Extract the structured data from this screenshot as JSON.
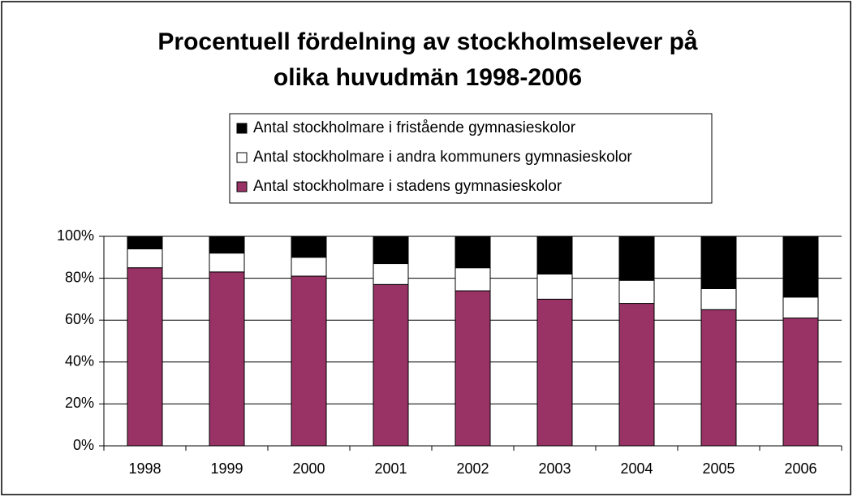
{
  "chart_data": {
    "type": "stacked_bar",
    "title": [
      "Procentuell fördelning av stockholmselever på",
      "olika huvudmän 1998-2006"
    ],
    "categories": [
      "1998",
      "1999",
      "2000",
      "2001",
      "2002",
      "2003",
      "2004",
      "2005",
      "2006"
    ],
    "series": [
      {
        "name": "Antal stockholmare i stadens gymnasieskolor",
        "color": "#993366",
        "values": [
          85,
          83,
          81,
          77,
          74,
          70,
          68,
          65,
          61
        ]
      },
      {
        "name": "Antal stockholmare i andra kommuners gymnasieskolor",
        "color": "#ffffff",
        "values": [
          9,
          9,
          9,
          10,
          11,
          12,
          11,
          10,
          10
        ]
      },
      {
        "name": "Antal stockholmare i fristående gymnasieskolor",
        "color": "#000000",
        "values": [
          6,
          8,
          10,
          13,
          15,
          18,
          21,
          25,
          29
        ]
      }
    ],
    "ylim": [
      0,
      100
    ],
    "yticks": [
      {
        "value": 0,
        "label": "0%"
      },
      {
        "value": 20,
        "label": "20%"
      },
      {
        "value": 40,
        "label": "40%"
      },
      {
        "value": 60,
        "label": "60%"
      },
      {
        "value": 80,
        "label": "80%"
      },
      {
        "value": 100,
        "label": "100%"
      }
    ],
    "grid": true
  }
}
